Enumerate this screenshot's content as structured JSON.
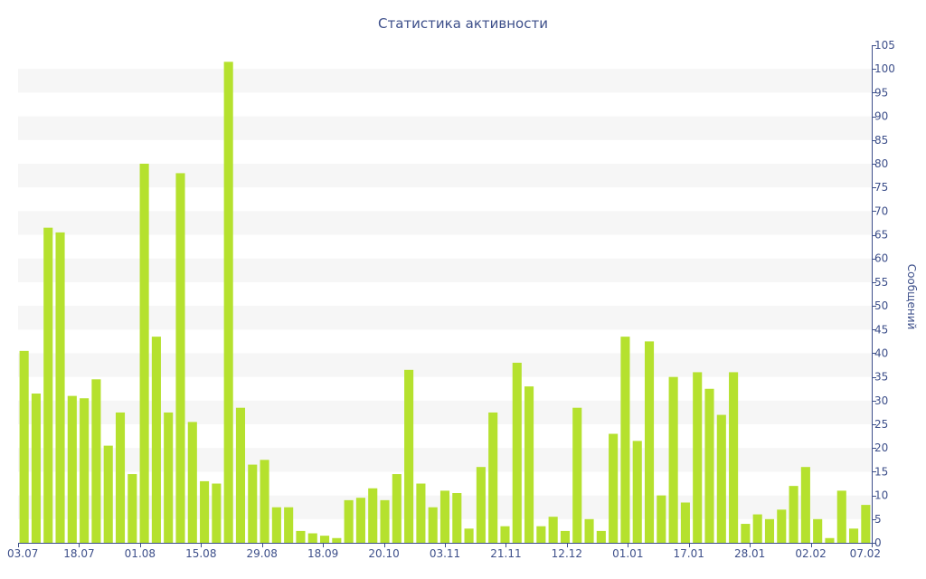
{
  "chart_data": {
    "type": "bar",
    "title": "Статистика активности",
    "ylabel": "Сообщений",
    "xlabel": "",
    "ylim": [
      0,
      105
    ],
    "y_tick_step": 5,
    "y_axis_side": "right",
    "grid": "alternating horizontal bands",
    "x_tick_labels": [
      "03.07",
      "18.07",
      "01.08",
      "15.08",
      "29.08",
      "18.09",
      "20.10",
      "03.11",
      "21.11",
      "12.12",
      "01.01",
      "17.01",
      "28.01",
      "02.02",
      "07.02"
    ],
    "series": [
      {
        "values": [
          40.5,
          31.5,
          66.5,
          65.5,
          31,
          30.5,
          34.5,
          20.5,
          27.5,
          14.5,
          80,
          43.5,
          27.5,
          78,
          25.5,
          13,
          12.5,
          101.5,
          28.5,
          16.5,
          17.5,
          7.5,
          7.5,
          2.5,
          2,
          1.5,
          1,
          9,
          9.5,
          11.5,
          9,
          14.5,
          36.5,
          12.5,
          7.5,
          11,
          10.5,
          3,
          16,
          27.5,
          3.5,
          38,
          33,
          3.5,
          5.5,
          2.5,
          28.5,
          5,
          2.5,
          23,
          43.5,
          21.5,
          42.5,
          10,
          35,
          8.5,
          36,
          32.5,
          27,
          36,
          4,
          6,
          5,
          7,
          12,
          16,
          5,
          1,
          11,
          3,
          8
        ]
      }
    ],
    "colors": {
      "bar": "#b5e12e",
      "text": "#3d4f8a",
      "band": "#f6f6f6",
      "axis": "#3d4f8a"
    }
  }
}
